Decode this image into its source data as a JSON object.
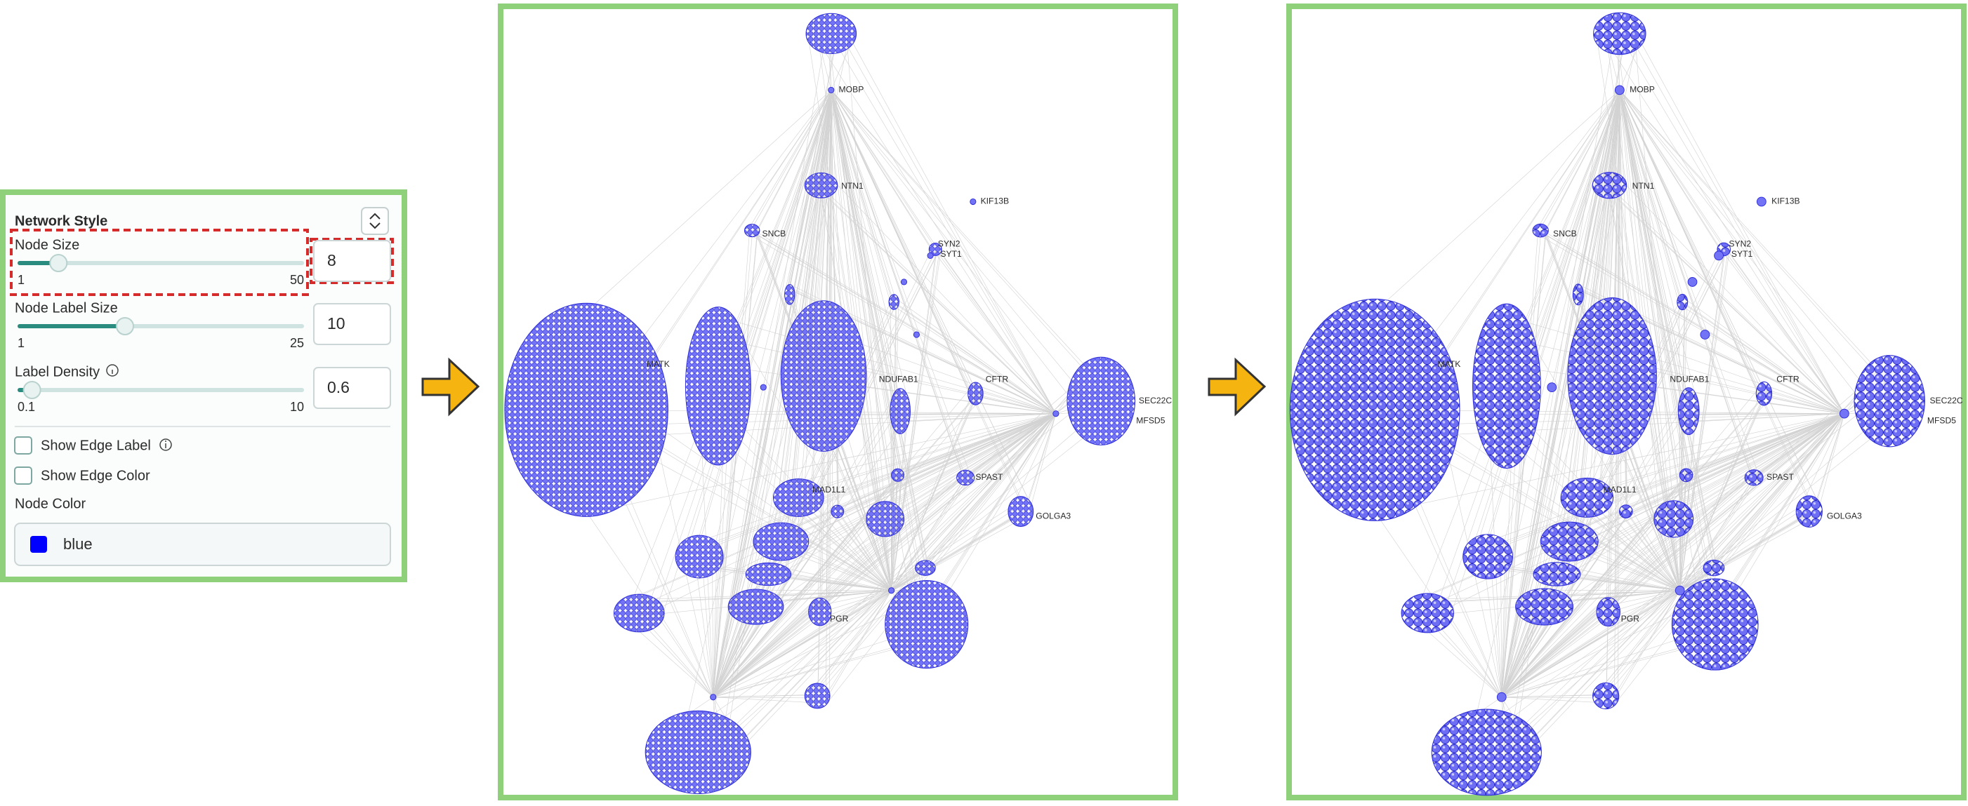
{
  "settings_panel": {
    "title": "Network Style",
    "controls": [
      {
        "label": "Node Size",
        "min": 1,
        "max": 50,
        "value": 8
      },
      {
        "label": "Node Label Size",
        "min": 1,
        "max": 25,
        "value": 10
      },
      {
        "label": "Label Density",
        "min": 0.1,
        "max": 10,
        "value": 0.6
      }
    ],
    "checkboxes": [
      "Show Edge Label",
      "Show Edge Color"
    ],
    "node_color": {
      "label": "Node Color",
      "value": "blue"
    }
  },
  "network": {
    "labels": [
      "MOBP",
      "NTN1",
      "SNCB",
      "KIF13B",
      "SYN2",
      "SYT1",
      "MATK",
      "NDUFAB1",
      "CFTR",
      "SEC22C",
      "MFSD5",
      "MAD1L1",
      "SPAST",
      "GOLGA3",
      "PGR"
    ]
  }
}
